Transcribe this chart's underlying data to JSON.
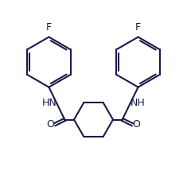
{
  "background_color": "#ffffff",
  "line_color": "#1a1a4a",
  "line_width": 1.5,
  "font_size_labels": 9,
  "F_label_left": "F",
  "F_label_right": "F",
  "NH_label_left": "HN",
  "NH_label_right": "NH",
  "O_label_left": "O",
  "O_label_right": "O",
  "xlim": [
    0,
    10
  ],
  "ylim": [
    0,
    9.5
  ],
  "r_benz": 1.35,
  "r_cyclo": 1.05,
  "lbx": 2.6,
  "lby": 6.2,
  "rbx": 7.4,
  "rby": 6.2,
  "ccx": 5.0,
  "ccy": 3.1
}
